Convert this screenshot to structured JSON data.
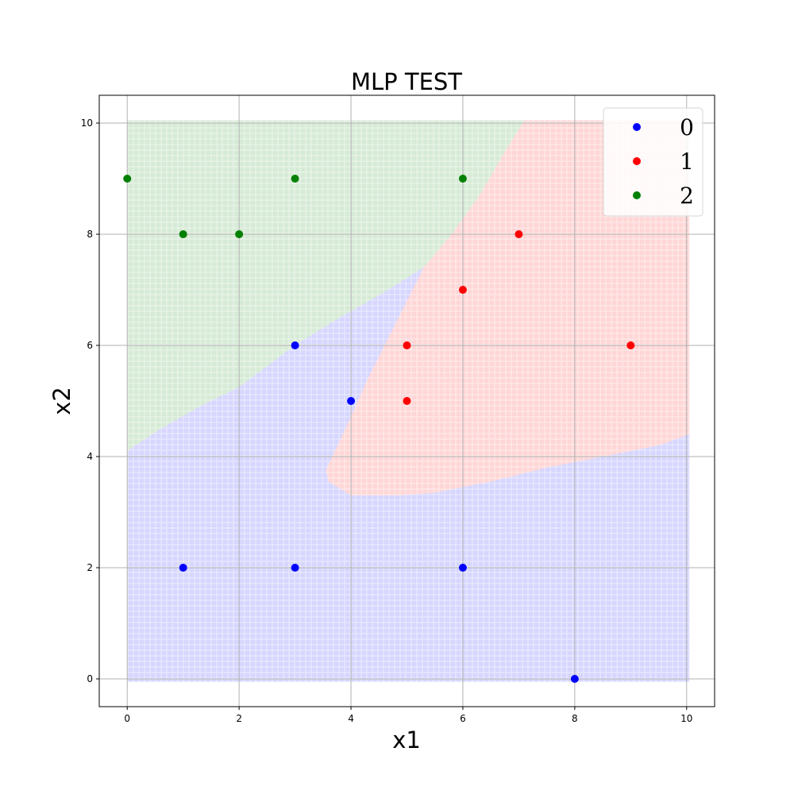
{
  "chart_data": {
    "type": "scatter",
    "title": "MLP TEST",
    "xlabel": "x1",
    "ylabel": "x2",
    "xlim": [
      -0.5,
      10.5
    ],
    "ylim": [
      -0.5,
      10.5
    ],
    "xticks": [
      "0",
      "2",
      "4",
      "6",
      "8",
      "10"
    ],
    "yticks": [
      "0",
      "2",
      "4",
      "6",
      "8",
      "10"
    ],
    "grid": true,
    "legend_position": "top-right",
    "series": [
      {
        "name": "0",
        "color": "#0000ff",
        "points": [
          [
            1,
            2
          ],
          [
            3,
            2
          ],
          [
            6,
            2
          ],
          [
            8,
            0
          ],
          [
            3,
            6
          ],
          [
            4,
            5
          ]
        ]
      },
      {
        "name": "1",
        "color": "#ff0000",
        "points": [
          [
            7,
            8
          ],
          [
            6,
            7
          ],
          [
            5,
            6
          ],
          [
            9,
            6
          ],
          [
            5,
            5
          ]
        ]
      },
      {
        "name": "2",
        "color": "#008000",
        "points": [
          [
            0,
            9
          ],
          [
            3,
            9
          ],
          [
            6,
            9
          ],
          [
            1,
            8
          ],
          [
            2,
            8
          ]
        ]
      }
    ],
    "decision_regions": [
      {
        "class": "2",
        "color": "#008000",
        "polygon": [
          [
            0,
            4.1
          ],
          [
            0.6,
            4.5
          ],
          [
            1.3,
            4.9
          ],
          [
            2.0,
            5.25
          ],
          [
            3.0,
            6.0
          ],
          [
            3.8,
            6.5
          ],
          [
            4.5,
            6.9
          ],
          [
            5.3,
            7.4
          ],
          [
            5.8,
            8.0
          ],
          [
            6.3,
            8.7
          ],
          [
            6.7,
            9.4
          ],
          [
            7.1,
            10.05
          ],
          [
            0,
            10.05
          ]
        ]
      },
      {
        "class": "1",
        "color": "#ff0000",
        "polygon": [
          [
            7.1,
            10.05
          ],
          [
            10.05,
            10.05
          ],
          [
            10.05,
            4.4
          ],
          [
            9.5,
            4.2
          ],
          [
            8.5,
            4.0
          ],
          [
            7.5,
            3.8
          ],
          [
            6.5,
            3.55
          ],
          [
            5.5,
            3.35
          ],
          [
            4.9,
            3.3
          ],
          [
            4.0,
            3.3
          ],
          [
            3.6,
            3.55
          ],
          [
            3.55,
            3.75
          ],
          [
            3.9,
            4.5
          ],
          [
            4.3,
            5.4
          ],
          [
            4.8,
            6.4
          ],
          [
            5.3,
            7.4
          ],
          [
            5.8,
            8.0
          ],
          [
            6.3,
            8.7
          ],
          [
            6.7,
            9.4
          ]
        ]
      },
      {
        "class": "0",
        "color": "#0000ff",
        "polygon": [
          [
            0,
            -0.05
          ],
          [
            10.05,
            -0.05
          ],
          [
            10.05,
            4.4
          ],
          [
            9.5,
            4.2
          ],
          [
            8.5,
            4.0
          ],
          [
            7.5,
            3.8
          ],
          [
            6.5,
            3.55
          ],
          [
            5.5,
            3.35
          ],
          [
            4.9,
            3.3
          ],
          [
            4.0,
            3.3
          ],
          [
            3.6,
            3.55
          ],
          [
            3.55,
            3.75
          ],
          [
            3.9,
            4.5
          ],
          [
            4.3,
            5.4
          ],
          [
            4.8,
            6.4
          ],
          [
            5.3,
            7.4
          ],
          [
            4.5,
            6.9
          ],
          [
            3.8,
            6.5
          ],
          [
            3.0,
            6.0
          ],
          [
            2.0,
            5.25
          ],
          [
            1.3,
            4.9
          ],
          [
            0.6,
            4.5
          ],
          [
            0,
            4.1
          ]
        ]
      }
    ]
  }
}
